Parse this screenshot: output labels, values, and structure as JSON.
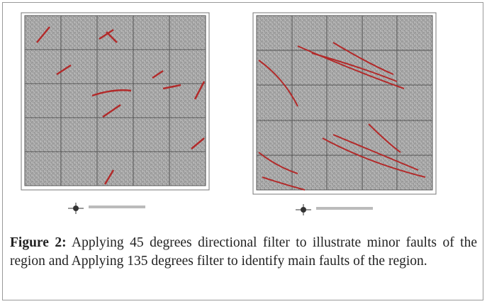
{
  "figure": {
    "label": "Figure 2:",
    "caption": "Applying 45 degrees directional filter to illustrate minor faults of the region and Applying 135 degrees filter to identify main faults of the region."
  }
}
